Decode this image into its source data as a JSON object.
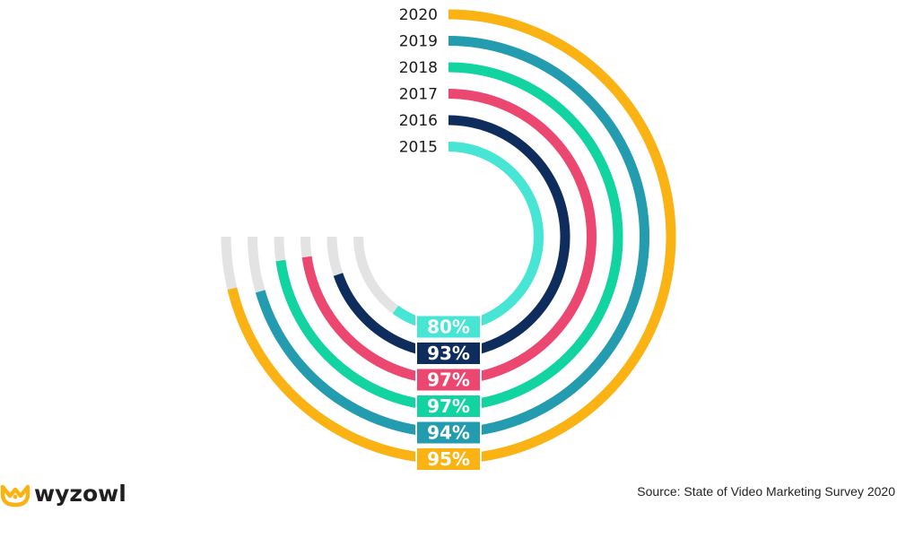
{
  "chart_data": {
    "type": "radial-bar",
    "max": 100,
    "series": [
      {
        "year": "2020",
        "value": 95,
        "label": "95%",
        "color": "#FBB314"
      },
      {
        "year": "2019",
        "value": 94,
        "label": "94%",
        "color": "#229CAE"
      },
      {
        "year": "2018",
        "value": 97,
        "label": "97%",
        "color": "#11D4A1"
      },
      {
        "year": "2017",
        "value": 97,
        "label": "97%",
        "color": "#EC4770"
      },
      {
        "year": "2016",
        "value": 93,
        "label": "93%",
        "color": "#0E2D5C"
      },
      {
        "year": "2015",
        "value": 80,
        "label": "80%",
        "color": "#47E6D4"
      }
    ],
    "track_color": "#E3E3E3"
  },
  "brand": {
    "name": "wyzowl",
    "color": "#FBB314"
  },
  "source": "Source: State of Video Marketing Survey 2020"
}
